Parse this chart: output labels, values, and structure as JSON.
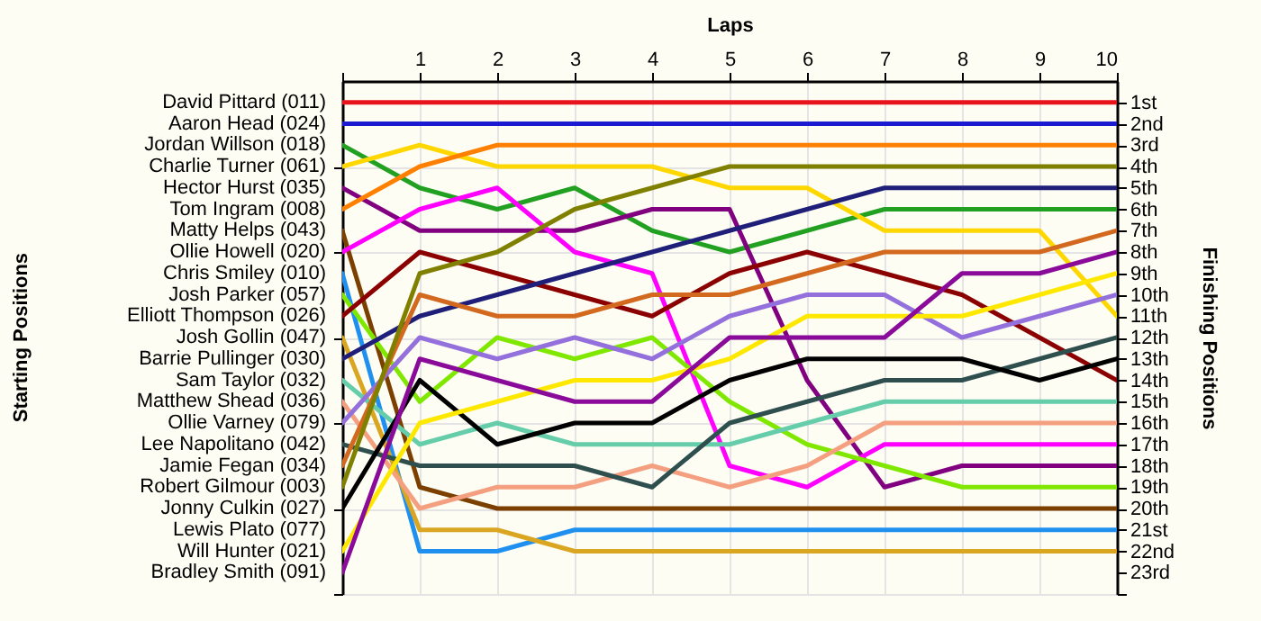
{
  "chart_data": {
    "type": "line",
    "xlabel": "Laps",
    "y2label": "Finishing Positions",
    "x": [
      0,
      1,
      2,
      3,
      4,
      5,
      6,
      7,
      8,
      9,
      10
    ],
    "xlim": [
      0,
      10
    ],
    "xticks": [
      {
        "value": 0,
        "label": null
      },
      1,
      2,
      3,
      4,
      5,
      6,
      7,
      8,
      9,
      10
    ],
    "y2lim": [
      24,
      0
    ],
    "y2ticks": [
      {
        "value": 1,
        "label": "1st"
      },
      {
        "value": 2,
        "label": "2nd"
      },
      {
        "value": 3,
        "label": "3rd"
      },
      {
        "value": 4,
        "label": "4th"
      },
      {
        "value": 5,
        "label": "5th"
      },
      {
        "value": 6,
        "label": "6th"
      },
      {
        "value": 7,
        "label": "7th"
      },
      {
        "value": 8,
        "label": "8th"
      },
      {
        "value": 9,
        "label": "9th"
      },
      {
        "value": 10,
        "label": "10th"
      },
      {
        "value": 11,
        "label": "11th"
      },
      {
        "value": 12,
        "label": "12th"
      },
      {
        "value": 13,
        "label": "13th"
      },
      {
        "value": 14,
        "label": "14th"
      },
      {
        "value": 15,
        "label": "15th"
      },
      {
        "value": 16,
        "label": "16th"
      },
      {
        "value": 17,
        "label": "17th"
      },
      {
        "value": 18,
        "label": "18th"
      },
      {
        "value": 19,
        "label": "19th"
      },
      {
        "value": 20,
        "label": "20th"
      },
      {
        "value": 21,
        "label": "21st"
      },
      {
        "value": 22,
        "label": "22nd"
      },
      {
        "value": 23,
        "label": "23rd"
      },
      {
        "value": 24,
        "label": null
      }
    ],
    "annotations": [
      "David Pittard (011)",
      "Aaron Head (024)",
      "Jordan Willson (018)",
      "Charlie Turner (061)",
      "Hector Hurst (035)",
      "Tom Ingram (008)",
      "Matty Helps (043)",
      "Ollie Howell (020)",
      "Chris Smiley (010)",
      "Josh Parker (057)",
      "Elliott Thompson (026)",
      "Josh Gollin (047)",
      "Barrie Pullinger (030)",
      "Sam Taylor (032)",
      "Matthew Shead (036)",
      "Ollie Varney (079)",
      "Lee Napolitano (042)",
      "Jamie Fegan (034)",
      "Robert Gilmour (003)",
      "Jonny Culkin (027)",
      "Lewis Plato (077)",
      "Will Hunter (021)",
      "Bradley Smith (091)",
      "Starting Positions"
    ],
    "grid": true,
    "legend": false,
    "marker": "none",
    "line_style": "solid",
    "series": [
      {
        "color": "#e8141c",
        "axis": "y2",
        "values": [
          1,
          1,
          1,
          1,
          1,
          1,
          1,
          1,
          1,
          1,
          1
        ]
      },
      {
        "color": "#1a1ad0",
        "axis": "y2",
        "values": [
          2,
          2,
          2,
          2,
          2,
          2,
          2,
          2,
          2,
          2,
          2
        ]
      },
      {
        "color": "#22a022",
        "axis": "y2",
        "values": [
          3,
          5,
          6,
          5,
          7,
          8,
          7,
          6,
          6,
          6,
          6
        ]
      },
      {
        "color": "#ffd700",
        "axis": "y2",
        "values": [
          4,
          3,
          4,
          4,
          4,
          5,
          5,
          7,
          7,
          7,
          11
        ]
      },
      {
        "color": "#800080",
        "axis": "y2",
        "values": [
          5,
          7,
          7,
          7,
          6,
          6,
          14,
          19,
          18,
          18,
          18
        ]
      },
      {
        "color": "#ff8000",
        "axis": "y2",
        "values": [
          6,
          4,
          3,
          3,
          3,
          3,
          3,
          3,
          3,
          3,
          3
        ]
      },
      {
        "color": "#7b3f00",
        "axis": "y2",
        "values": [
          7,
          19,
          20,
          20,
          20,
          20,
          20,
          20,
          20,
          20,
          20
        ]
      },
      {
        "color": "#ff00ff",
        "axis": "y2",
        "values": [
          8,
          6,
          5,
          8,
          9,
          18,
          19,
          17,
          17,
          17,
          17
        ]
      },
      {
        "color": "#2090f0",
        "axis": "y2",
        "values": [
          9,
          22,
          22,
          21,
          21,
          21,
          21,
          21,
          21,
          21,
          21
        ]
      },
      {
        "color": "#80e800",
        "axis": "y2",
        "values": [
          10,
          15,
          12,
          13,
          12,
          15,
          17,
          18,
          19,
          19,
          19
        ]
      },
      {
        "color": "#8b0000",
        "axis": "y2",
        "values": [
          11,
          8,
          9,
          10,
          11,
          9,
          8,
          9,
          10,
          12,
          14
        ]
      },
      {
        "color": "#daa520",
        "axis": "y2",
        "values": [
          12,
          21,
          21,
          22,
          22,
          22,
          22,
          22,
          22,
          22,
          22
        ]
      },
      {
        "color": "#1f1f7a",
        "axis": "y2",
        "values": [
          13,
          11,
          10,
          9,
          8,
          7,
          6,
          5,
          5,
          5,
          5
        ]
      },
      {
        "color": "#66cdaa",
        "axis": "y2",
        "values": [
          14,
          17,
          16,
          17,
          17,
          17,
          16,
          15,
          15,
          15,
          15
        ]
      },
      {
        "color": "#f4a080",
        "axis": "y2",
        "values": [
          15,
          20,
          19,
          19,
          18,
          19,
          18,
          16,
          16,
          16,
          16
        ]
      },
      {
        "color": "#9370db",
        "axis": "y2",
        "values": [
          16,
          12,
          13,
          12,
          13,
          11,
          10,
          10,
          12,
          11,
          10
        ]
      },
      {
        "color": "#2f4f4f",
        "axis": "y2",
        "values": [
          17,
          18,
          18,
          18,
          19,
          16,
          15,
          14,
          14,
          13,
          12
        ]
      },
      {
        "color": "#d2691e",
        "axis": "y2",
        "values": [
          18,
          10,
          11,
          11,
          10,
          10,
          9,
          8,
          8,
          8,
          7
        ]
      },
      {
        "color": "#808000",
        "axis": "y2",
        "values": [
          19,
          9,
          8,
          6,
          5,
          4,
          4,
          4,
          4,
          4,
          4
        ]
      },
      {
        "color": "#000000",
        "axis": "y2",
        "values": [
          20,
          14,
          17,
          16,
          16,
          14,
          13,
          13,
          13,
          14,
          13
        ]
      },
      {
        "color": "#ffe800",
        "axis": "y2",
        "values": [
          22,
          16,
          15,
          14,
          14,
          13,
          11,
          11,
          11,
          10,
          9
        ]
      },
      {
        "color": "#8a0a9a",
        "axis": "y2",
        "values": [
          23,
          13,
          14,
          15,
          15,
          12,
          12,
          12,
          9,
          9,
          8
        ]
      }
    ]
  }
}
